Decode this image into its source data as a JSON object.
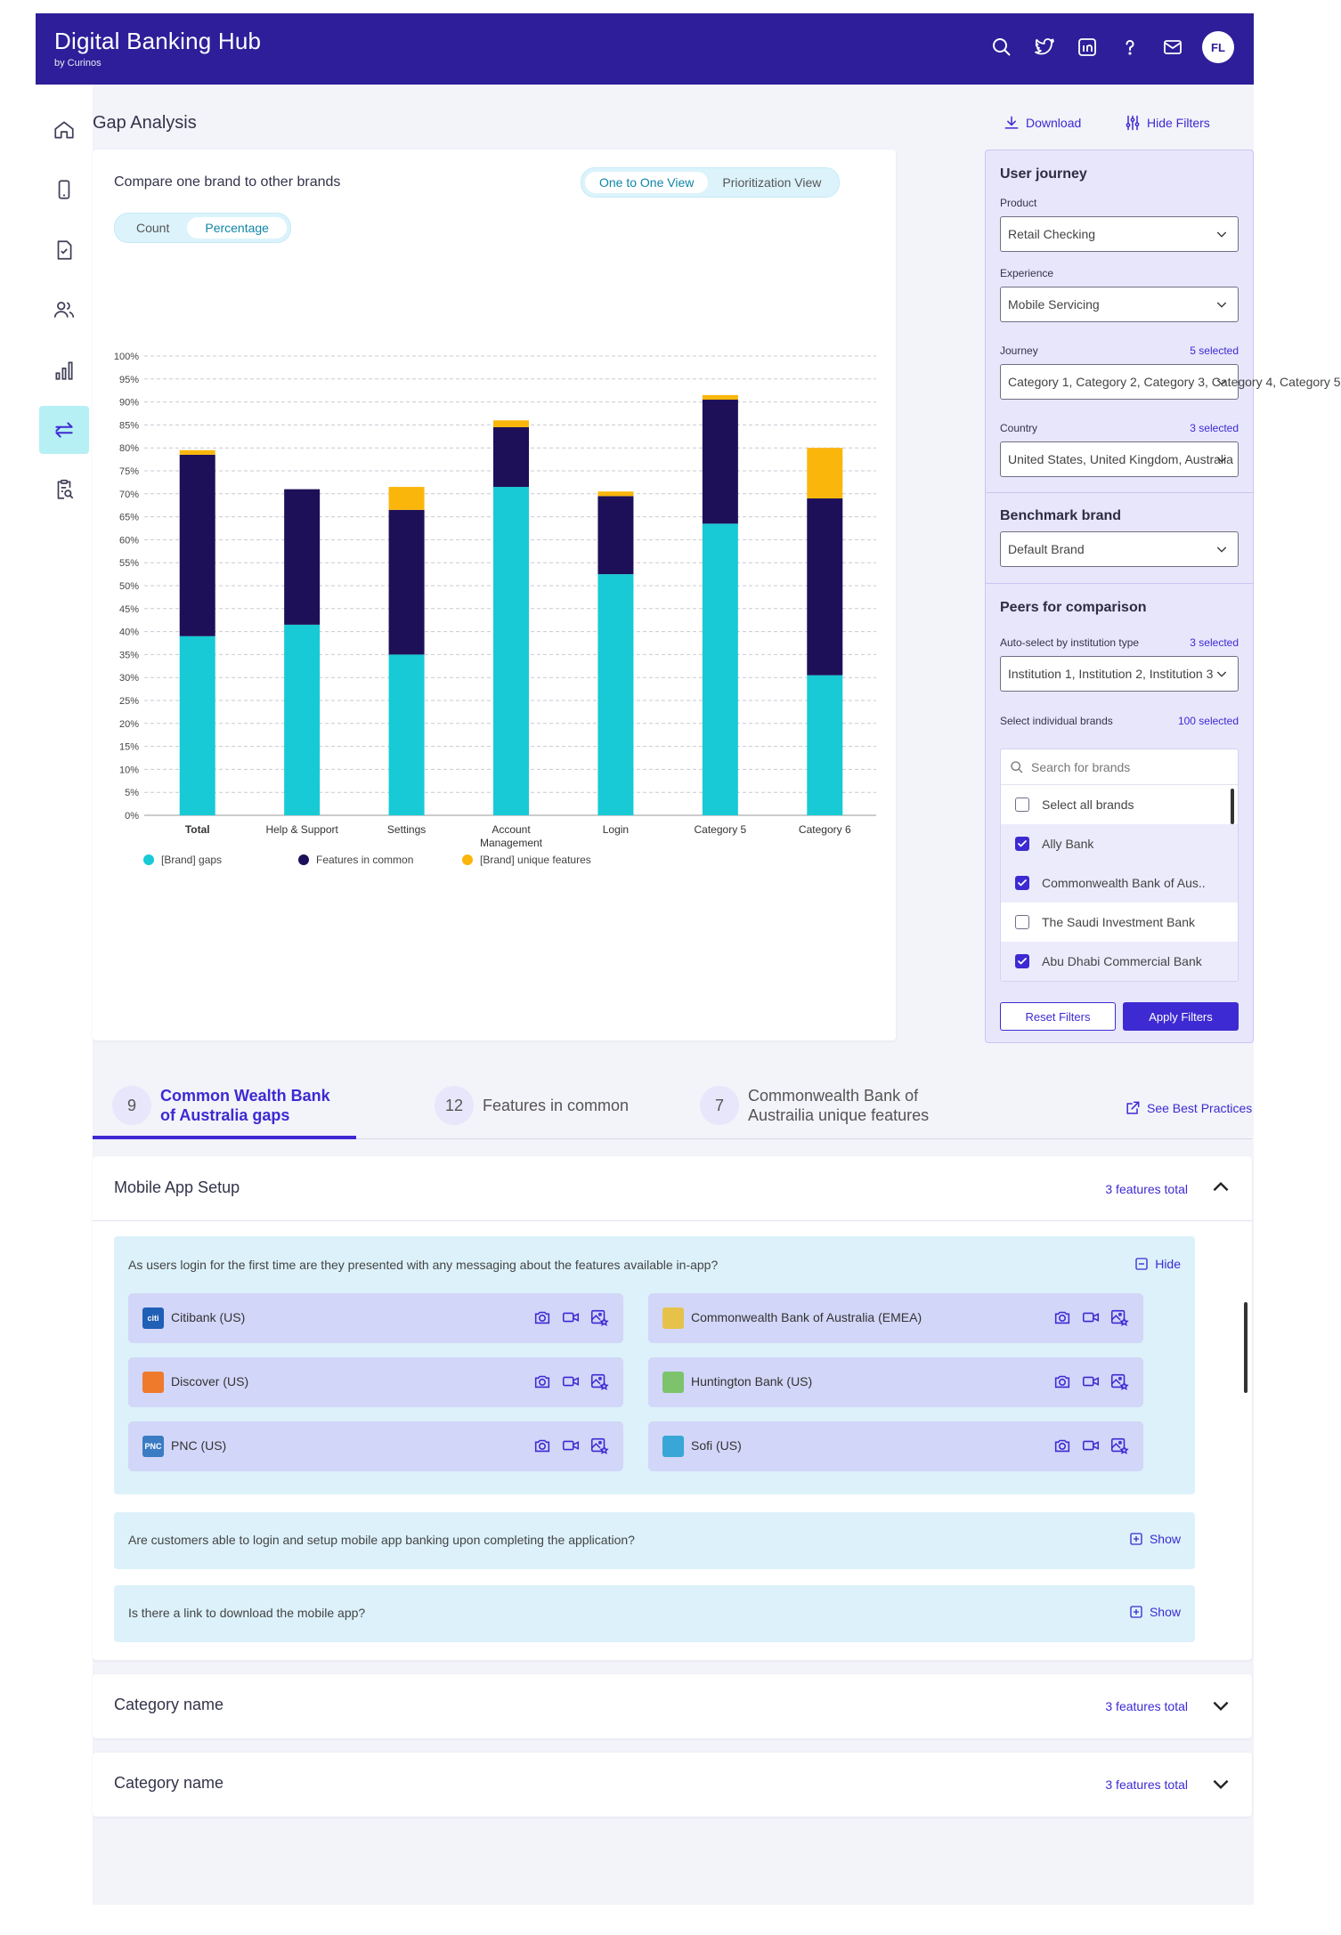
{
  "app": {
    "title": "Digital Banking Hub",
    "subtitle": "by Curinos",
    "avatar": "FL"
  },
  "topbar_icons": [
    "search-icon",
    "twitter-icon",
    "linkedin-icon",
    "help-icon",
    "mail-icon"
  ],
  "sidebar": {
    "items": [
      "home-icon",
      "mobile-icon",
      "document-check-icon",
      "users-icon",
      "bar-chart-icon",
      "compare-arrows-icon",
      "clipboard-search-icon"
    ],
    "active": "compare-arrows-icon"
  },
  "header": {
    "title": "Gap Analysis",
    "download": "Download",
    "hide_filters": "Hide Filters"
  },
  "chart_card": {
    "subtitle": "Compare one brand to other brands",
    "view_toggle": [
      "One to One View",
      "Prioritization View"
    ],
    "view_selected": "One to One View",
    "metric_toggle": [
      "Count",
      "Percentage"
    ],
    "metric_selected": "Percentage"
  },
  "chart_data": {
    "type": "bar",
    "stacked": true,
    "categories": [
      "Total",
      "Help & Support",
      "Settings",
      "Account Management",
      "Login",
      "Category 5",
      "Category 6"
    ],
    "series": [
      {
        "name": "[Brand] gaps",
        "color": "#17cad6",
        "values": [
          39,
          41.5,
          35,
          71.5,
          52.5,
          63.5,
          30.5
        ]
      },
      {
        "name": "Features in common",
        "color": "#1d1058",
        "values": [
          39.5,
          29.5,
          31.5,
          13,
          17,
          27,
          38.5
        ]
      },
      {
        "name": "[Brand] unique features",
        "color": "#fbb60c",
        "values": [
          1,
          0,
          5,
          1.5,
          1,
          1,
          11
        ]
      }
    ],
    "ylim": [
      0,
      100
    ],
    "yticks": [
      "0%",
      "5%",
      "10%",
      "15%",
      "20%",
      "25%",
      "30%",
      "35%",
      "40%",
      "45%",
      "50%",
      "55%",
      "60%",
      "65%",
      "70%",
      "75%",
      "80%",
      "85%",
      "90%",
      "95%",
      "100%"
    ],
    "grid": true,
    "legend": "bottom"
  },
  "filters": {
    "user_journey_heading": "User journey",
    "product_label": "Product",
    "product_value": "Retail Checking",
    "experience_label": "Experience",
    "experience_value": "Mobile Servicing",
    "journey_label": "Journey",
    "journey_count": "5 selected",
    "journey_value": "Category 1, Category 2, Category 3, Category 4, Category 5",
    "country_label": "Country",
    "country_count": "3 selected",
    "country_value": "United States, United Kingdom, Australia",
    "benchmark_heading": "Benchmark brand",
    "benchmark_value": "Default Brand",
    "peers_heading": "Peers for comparison",
    "auto_label": "Auto-select by institution type",
    "auto_count": "3 selected",
    "auto_value": "Institution 1, Institution 2, Institution 3",
    "individual_label": "Select individual brands",
    "individual_count": "100 selected",
    "search_placeholder": "Search for brands",
    "brands": [
      {
        "name": "Select all brands",
        "checked": false
      },
      {
        "name": "Ally Bank",
        "checked": true
      },
      {
        "name": "Commonwealth Bank of Aus..",
        "checked": true
      },
      {
        "name": "The Saudi Investment Bank",
        "checked": false
      },
      {
        "name": "Abu Dhabi Commercial Bank",
        "checked": true
      }
    ],
    "reset": "Reset Filters",
    "apply": "Apply Filters"
  },
  "tabs": [
    {
      "num": "9",
      "label1": "Common Wealth Bank",
      "label2": "of Australia gaps",
      "active": true
    },
    {
      "num": "12",
      "label1": "Features in common",
      "label2": "",
      "active": false
    },
    {
      "num": "7",
      "label1": "Commonwealth Bank of",
      "label2": "Austrailia unique features",
      "active": false
    }
  ],
  "best_practices": "See Best Practices",
  "categories": [
    {
      "title": "Mobile App Setup",
      "count": "3 features total",
      "expanded": true,
      "questions": [
        {
          "text": "As users login for the first time are they presented with any messaging about the features available in-app?",
          "action": "Hide",
          "banks": [
            {
              "name": "Citibank (US)",
              "logo_text": "citi",
              "logo_color": "#1f5fb5"
            },
            {
              "name": "Commonwealth Bank of Australia (EMEA)",
              "logo_text": "",
              "logo_color": "#e6c24a"
            },
            {
              "name": "Discover (US)",
              "logo_text": "",
              "logo_color": "#ef7a2b"
            },
            {
              "name": "Huntington Bank (US)",
              "logo_text": "",
              "logo_color": "#7cc36b"
            },
            {
              "name": "PNC (US)",
              "logo_text": "PNC",
              "logo_color": "#3a7cc4"
            },
            {
              "name": "Sofi (US)",
              "logo_text": "",
              "logo_color": "#38a6d6"
            }
          ]
        },
        {
          "text": "Are customers able to login and setup mobile app banking upon completing the application?",
          "action": "Show"
        },
        {
          "text": "Is there a link to download the mobile app?",
          "action": "Show"
        }
      ]
    },
    {
      "title": "Category name",
      "count": "3 features total",
      "expanded": false
    },
    {
      "title": "Category name",
      "count": "3 features total",
      "expanded": false
    }
  ]
}
